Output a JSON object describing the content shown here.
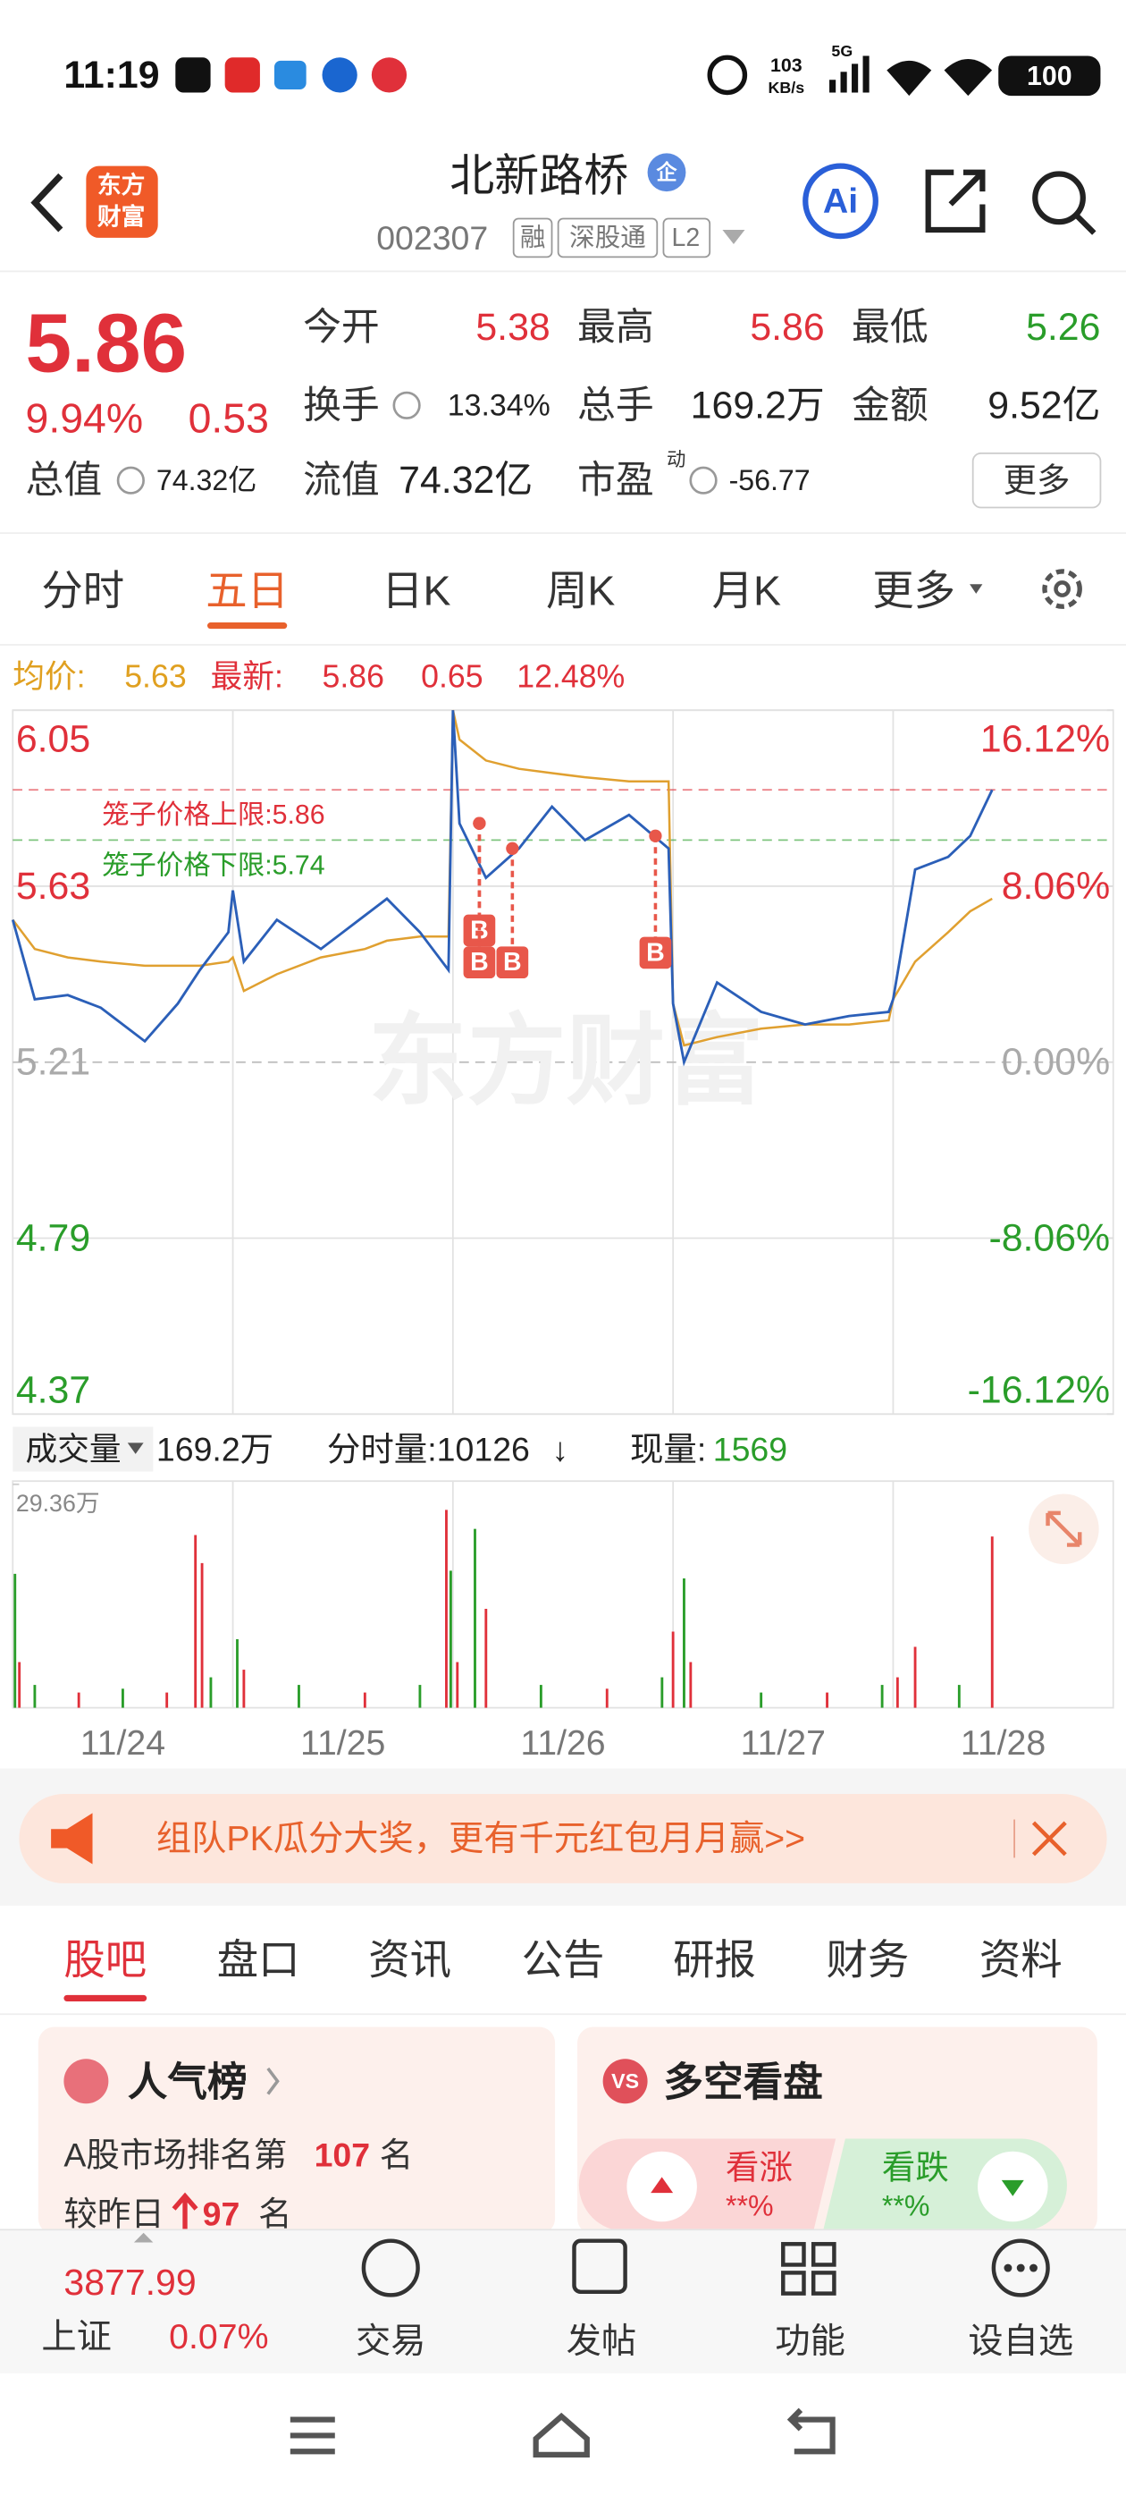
{
  "status": {
    "time": "11:19",
    "speed": "103",
    "speed_unit": "KB/s",
    "network": "5G",
    "battery": "100"
  },
  "header": {
    "logo_lines": [
      "东方",
      "财富"
    ],
    "title": "北新路桥",
    "badge": "企",
    "code": "002307",
    "tags": [
      "融",
      "深股通",
      "L2"
    ],
    "ai": "Ai"
  },
  "quote": {
    "price": "5.86",
    "change_pct": "9.94%",
    "change": "0.53",
    "more": "更多",
    "fields": [
      {
        "label": "今开",
        "value": "5.38",
        "color": "#e0303a"
      },
      {
        "label": "最高",
        "value": "5.86",
        "color": "#e0303a"
      },
      {
        "label": "最低",
        "value": "5.26",
        "color": "#2a9d2a"
      },
      {
        "label": "换手",
        "value": "13.34%",
        "color": "#222222"
      },
      {
        "label": "总手",
        "value": "169.2万",
        "color": "#222222"
      },
      {
        "label": "金额",
        "value": "9.52亿",
        "color": "#222222"
      },
      {
        "label": "总值",
        "value": "74.32亿",
        "color": "#222222"
      },
      {
        "label": "流值",
        "value": "74.32亿",
        "color": "#222222"
      },
      {
        "label": "市盈",
        "label_sup": "动",
        "value": "-56.77",
        "color": "#222222"
      }
    ]
  },
  "tabs": {
    "items": [
      "分时",
      "五日",
      "日K",
      "周K",
      "月K",
      "更多"
    ],
    "active": 1
  },
  "chart_info": {
    "avg_label": "均价:",
    "avg": "5.63",
    "last_label": "最新:",
    "last": "5.86",
    "change": "0.65",
    "change_pct": "12.48%"
  },
  "chart_data": [
    {
      "type": "line",
      "xlim": [
        0,
        5
      ],
      "ylim": [
        4.37,
        6.05
      ],
      "yticks": [
        6.05,
        5.63,
        5.21,
        4.79,
        4.37
      ],
      "y2lim": [
        -16.12,
        16.12
      ],
      "y2ticks": [
        {
          "value": 16.12,
          "label": "16.12%"
        },
        {
          "value": 8.06,
          "label": "8.06%"
        },
        {
          "value": 0,
          "label": "0.00%"
        },
        {
          "value": -8.06,
          "label": "-8.06%"
        },
        {
          "value": -16.12,
          "label": "-16.12%"
        }
      ],
      "x": [
        0,
        0.1,
        0.25,
        0.4,
        0.6,
        0.75,
        0.85,
        0.98,
        1.0,
        1.05,
        1.2,
        1.4,
        1.6,
        1.7,
        1.85,
        1.98,
        2.0,
        2.03,
        2.15,
        2.3,
        2.45,
        2.6,
        2.8,
        2.98,
        3.0,
        3.05,
        3.2,
        3.4,
        3.6,
        3.8,
        3.98,
        4.0,
        4.1,
        4.25,
        4.35,
        4.45
      ],
      "series": [
        {
          "color": "#2b5fb8",
          "values": [
            5.55,
            5.36,
            5.37,
            5.34,
            5.26,
            5.35,
            5.43,
            5.52,
            5.62,
            5.45,
            5.55,
            5.48,
            5.56,
            5.6,
            5.52,
            5.43,
            6.05,
            5.78,
            5.65,
            5.72,
            5.82,
            5.74,
            5.8,
            5.72,
            5.35,
            5.21,
            5.4,
            5.33,
            5.3,
            5.32,
            5.33,
            5.36,
            5.67,
            5.7,
            5.75,
            5.86
          ]
        },
        {
          "color": "#e0a030",
          "values": [
            5.55,
            5.48,
            5.46,
            5.45,
            5.44,
            5.44,
            5.44,
            5.45,
            5.46,
            5.38,
            5.42,
            5.46,
            5.48,
            5.5,
            5.51,
            5.51,
            6.05,
            5.98,
            5.93,
            5.91,
            5.9,
            5.89,
            5.88,
            5.88,
            5.35,
            5.25,
            5.27,
            5.29,
            5.3,
            5.3,
            5.31,
            5.36,
            5.45,
            5.52,
            5.57,
            5.6
          ]
        }
      ],
      "limits": [
        {
          "label": "笼子价格上限:5.86",
          "value": 5.86,
          "color": "#e0303a"
        },
        {
          "label": "笼子价格下限:5.74",
          "value": 5.74,
          "color": "#2a9d2a"
        }
      ],
      "markers": [
        {
          "label": "B",
          "x": 2.12,
          "value": 5.78
        },
        {
          "label": "B",
          "x": 2.12,
          "value": 5.78
        },
        {
          "label": "B",
          "x": 2.27,
          "value": 5.72
        },
        {
          "label": "B",
          "x": 2.92,
          "value": 5.75
        }
      ],
      "marker_color": "#e8574a"
    },
    {
      "type": "bar",
      "xlim": [
        0,
        5
      ],
      "ylim": [
        0,
        29.36
      ],
      "yticks": [
        {
          "value": 29.36,
          "label": "29.36万"
        }
      ],
      "categories": [
        "11/24",
        "11/25",
        "11/26",
        "11/27",
        "11/28"
      ],
      "x": [
        0.01,
        0.03,
        0.1,
        0.3,
        0.5,
        0.7,
        0.83,
        0.86,
        0.9,
        1.02,
        1.05,
        1.3,
        1.6,
        1.85,
        1.97,
        1.99,
        2.02,
        2.1,
        2.15,
        2.4,
        2.7,
        2.95,
        3.0,
        3.05,
        3.08,
        3.4,
        3.7,
        3.95,
        4.02,
        4.1,
        4.3,
        4.45
      ],
      "values": [
        17.6,
        6,
        3,
        2,
        2.5,
        2,
        22.7,
        19,
        4,
        9,
        5,
        3,
        2,
        3,
        26,
        18,
        6,
        23.5,
        13,
        3,
        2.5,
        4,
        10,
        17,
        6,
        2,
        2,
        3,
        4,
        8,
        3,
        22.5
      ],
      "colors": [
        "#2a9d2a",
        "#e0303a",
        "#2a9d2a",
        "#e0303a",
        "#2a9d2a",
        "#e0303a",
        "#e0303a",
        "#e0303a",
        "#2a9d2a",
        "#2a9d2a",
        "#e0303a",
        "#2a9d2a",
        "#e0303a",
        "#2a9d2a",
        "#e0303a",
        "#2a9d2a",
        "#e0303a",
        "#2a9d2a",
        "#e0303a",
        "#2a9d2a",
        "#e0303a",
        "#2a9d2a",
        "#e0303a",
        "#2a9d2a",
        "#e0303a",
        "#2a9d2a",
        "#e0303a",
        "#2a9d2a",
        "#e0303a",
        "#e0303a",
        "#2a9d2a",
        "#e0303a"
      ]
    }
  ],
  "volume_info": {
    "label": "成交量",
    "total": "169.2万",
    "tick_label": "分时量:10126",
    "tick_dir": "↓",
    "current_label": "现量:",
    "current": "1569"
  },
  "banner": {
    "text": "组队PK瓜分大奖，更有千元红包月月赢>>"
  },
  "sub_tabs": {
    "items": [
      "股吧",
      "盘口",
      "资讯",
      "公告",
      "研报",
      "财务",
      "资料"
    ],
    "active": 0
  },
  "cards": {
    "popularity": {
      "title": "人气榜",
      "rank_prefix": "A股市场排名第",
      "rank": "107",
      "rank_suffix": "名",
      "change_prefix": "较昨日",
      "change": "97",
      "change_suffix": "名"
    },
    "sentiment": {
      "title": "多空看盘",
      "icon": "VS",
      "bull": "看涨",
      "bull_pct": "**%",
      "bear": "看跌",
      "bear_pct": "**%"
    }
  },
  "bottom_bar": {
    "index_value": "3877.99",
    "index_name": "上证",
    "index_change": "0.07%",
    "nav": [
      "交易",
      "发帖",
      "功能",
      "设自选"
    ]
  },
  "watermark": "东方财富"
}
